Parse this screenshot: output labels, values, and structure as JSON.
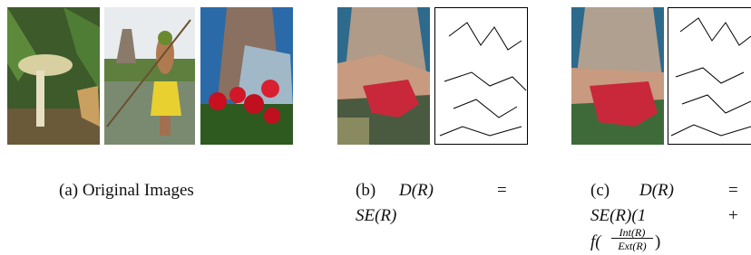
{
  "panels": [
    {
      "label": "(a)",
      "caption": "Original Images"
    },
    {
      "label": "(b)",
      "caption_parts": [
        "D(R)",
        "=",
        "SE(R)"
      ]
    },
    {
      "label": "(c)",
      "caption_parts": [
        "D(R)",
        "=",
        "SE(R)(1",
        "+",
        "f(",
        "Int(R)",
        "Ext(R)",
        ")"
      ]
    }
  ]
}
